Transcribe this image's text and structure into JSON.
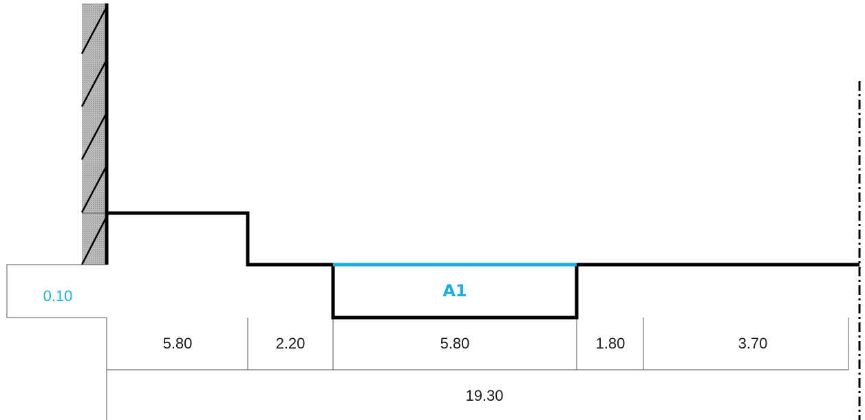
{
  "colors": {
    "accent": "#1aaee3",
    "line": "#000000",
    "thin_line": "#555555",
    "wall_fill": "#a9a9a9"
  },
  "labels": {
    "offset": "0.10",
    "segment_name": "A1"
  },
  "dimensions": {
    "segments": [
      "5.80",
      "2.20",
      "5.80",
      "1.80",
      "3.70"
    ],
    "total": "19.30"
  }
}
